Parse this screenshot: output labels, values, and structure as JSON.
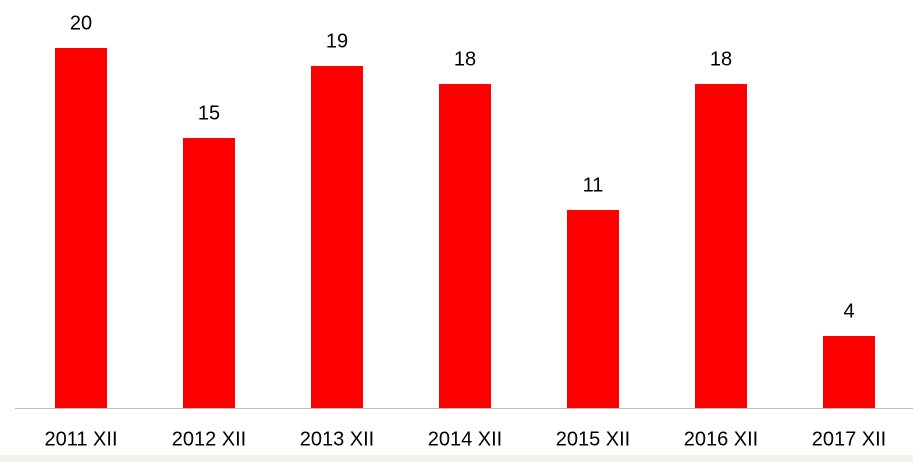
{
  "chart_data": {
    "type": "bar",
    "categories": [
      "2011 XII",
      "2012 XII",
      "2013 XII",
      "2014 XII",
      "2015 XII",
      "2016 XII",
      "2017 XII"
    ],
    "values": [
      20,
      15,
      19,
      18,
      11,
      18,
      4
    ],
    "color": "#ff0000"
  }
}
